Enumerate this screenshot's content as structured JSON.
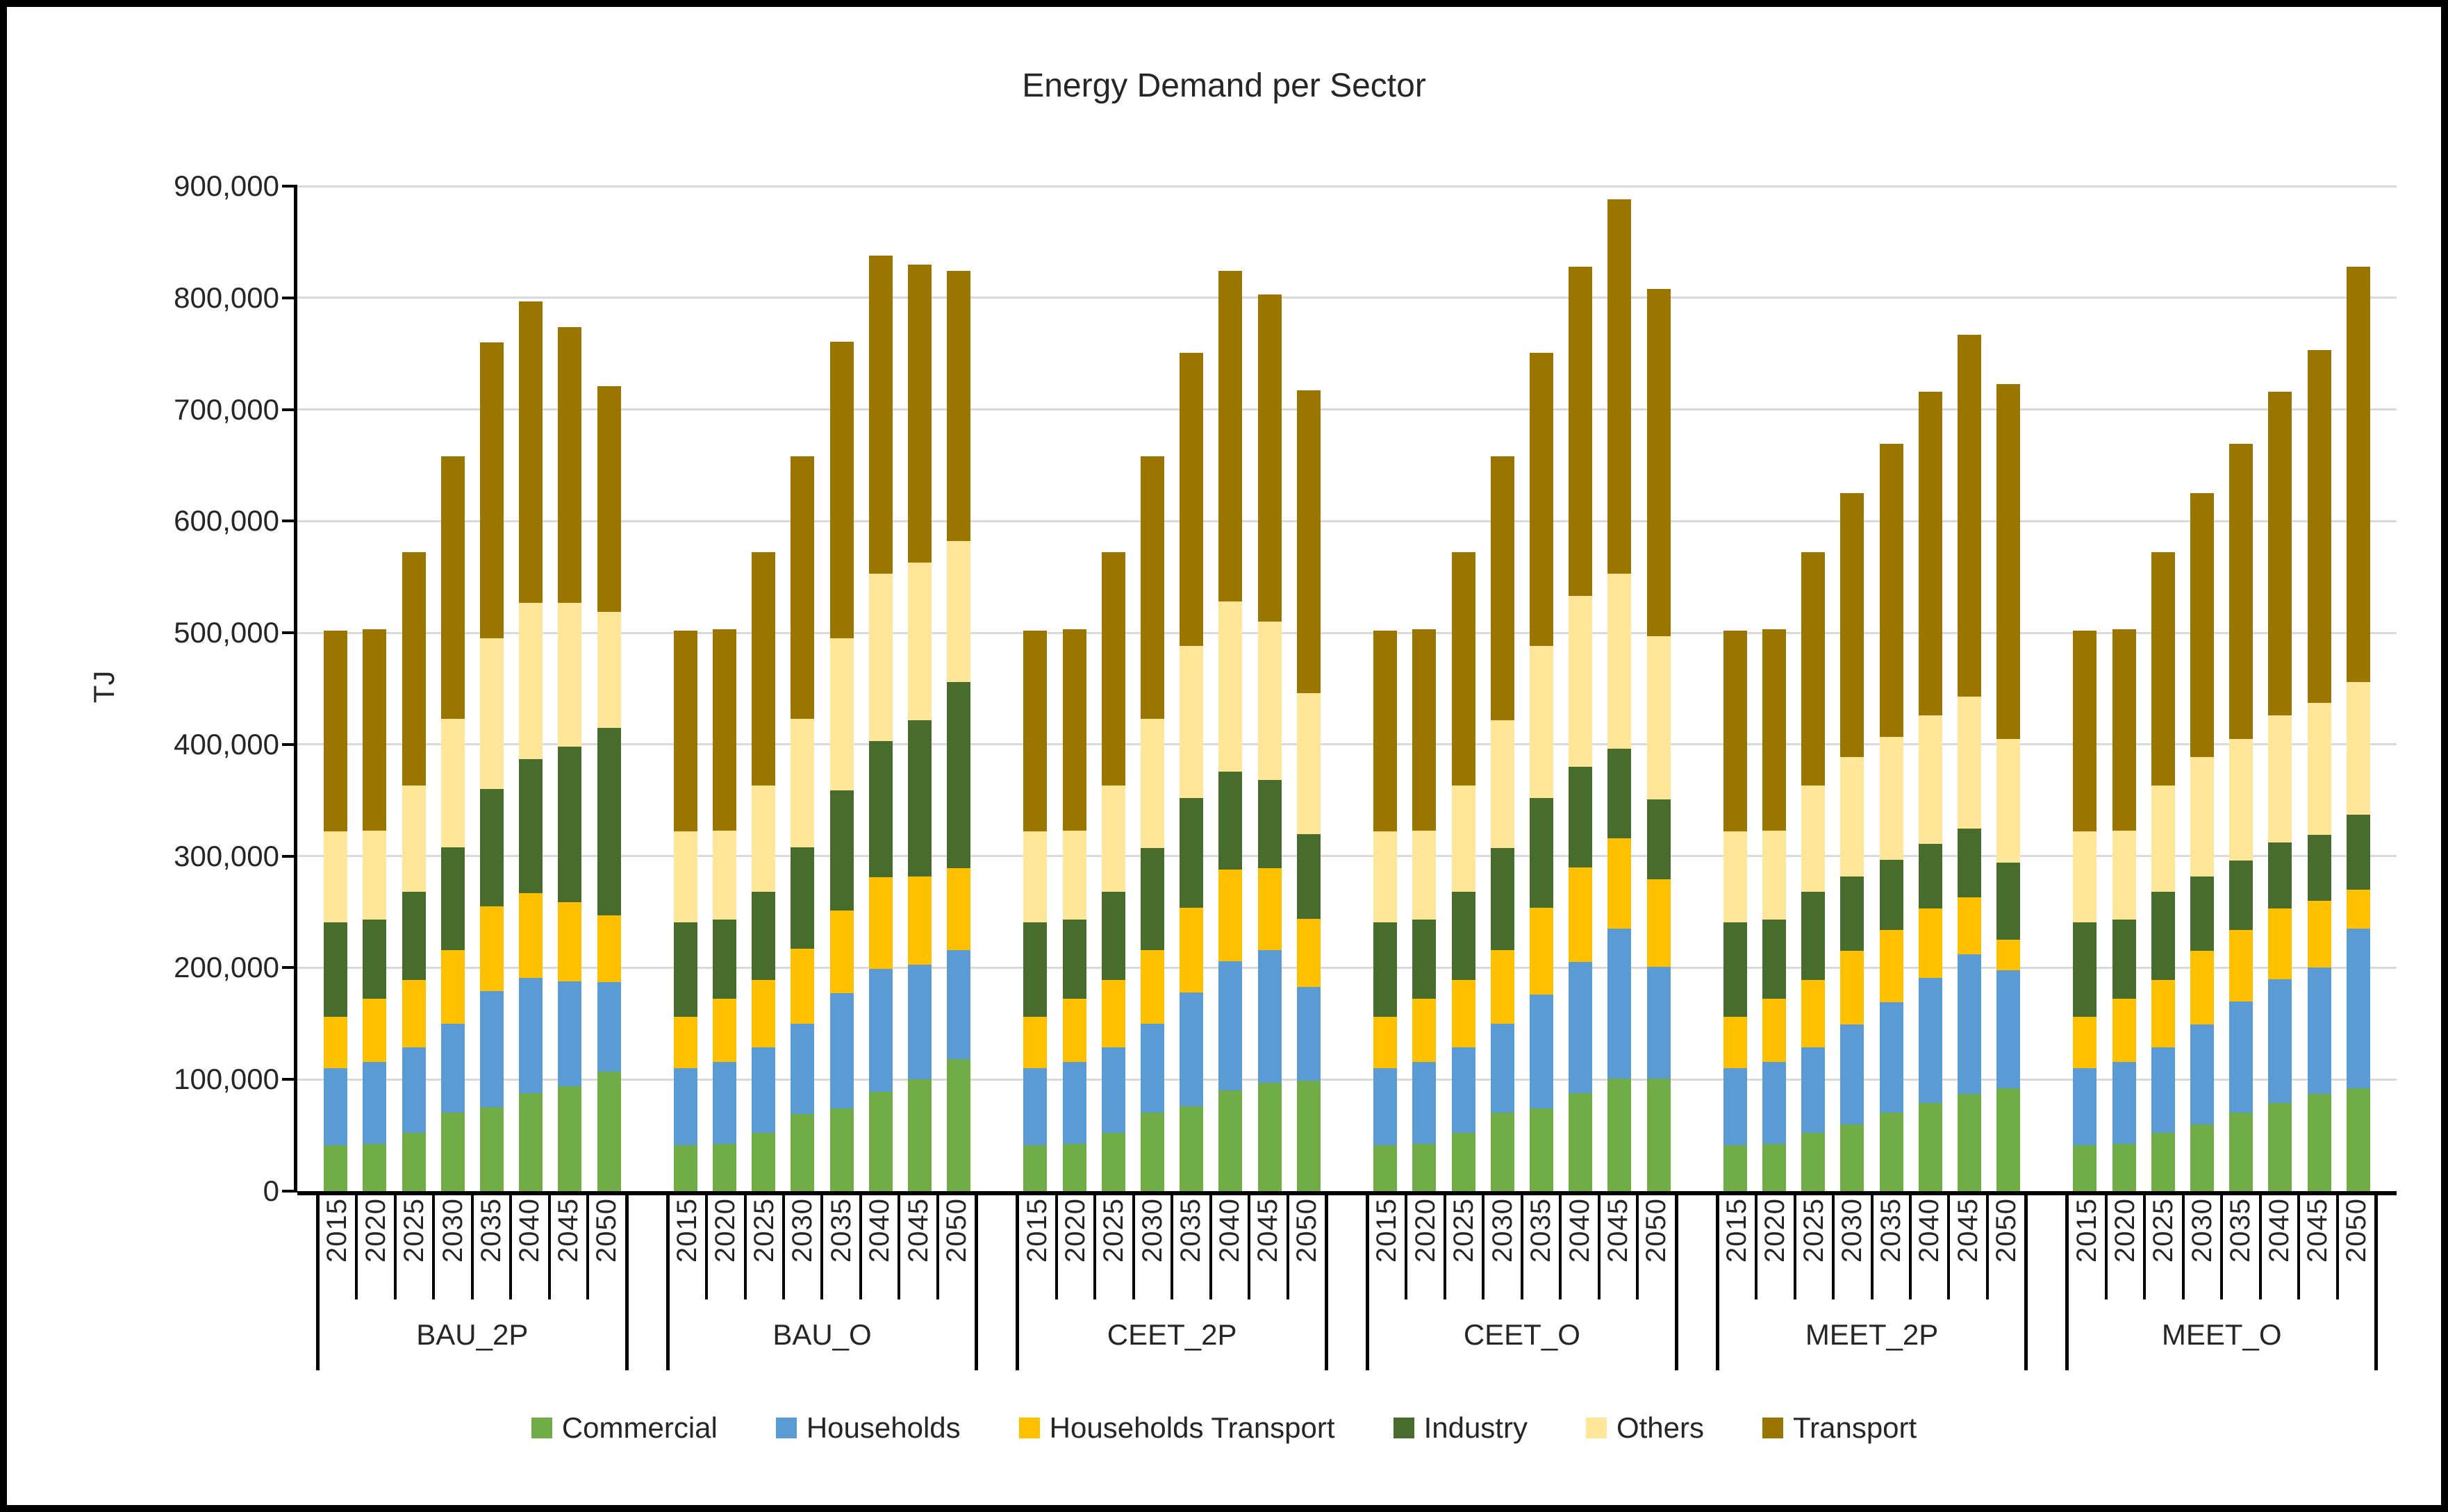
{
  "chart_data": {
    "type": "bar",
    "stacked": true,
    "title": "Energy Demand per Sector",
    "ylabel": "TJ",
    "ylim": [
      0,
      900000
    ],
    "grid": true,
    "legend_position": "bottom",
    "y_tick_labels": [
      "0",
      "100,000",
      "200,000",
      "300,000",
      "400,000",
      "500,000",
      "600,000",
      "700,000",
      "800,000",
      "900,000"
    ],
    "groups": [
      "BAU_2P",
      "BAU_O",
      "CEET_2P",
      "CEET_O",
      "MEET_2P",
      "MEET_O"
    ],
    "years": [
      "2015",
      "2020",
      "2025",
      "2030",
      "2035",
      "2040",
      "2045",
      "2050"
    ],
    "series": [
      {
        "name": "Commercial",
        "color": "#70AD47",
        "values": [
          [
            41000,
            42000,
            52000,
            70000,
            75000,
            88000,
            94000,
            107000
          ],
          [
            41000,
            42000,
            52000,
            69000,
            74000,
            89000,
            100000,
            118000
          ],
          [
            41000,
            42000,
            52000,
            70000,
            76000,
            90000,
            97000,
            99000
          ],
          [
            41000,
            42000,
            52000,
            70000,
            74000,
            88000,
            101000,
            101000
          ],
          [
            41000,
            42000,
            52000,
            60000,
            70000,
            79000,
            87000,
            92000
          ],
          [
            41000,
            42000,
            52000,
            60000,
            70000,
            79000,
            87000,
            92000
          ]
        ]
      },
      {
        "name": "Households",
        "color": "#5B9BD5",
        "values": [
          [
            69000,
            74000,
            77000,
            80000,
            104000,
            103000,
            94000,
            80000
          ],
          [
            69000,
            74000,
            77000,
            81000,
            103000,
            110000,
            103000,
            98000
          ],
          [
            69000,
            74000,
            77000,
            80000,
            102000,
            116000,
            119000,
            84000
          ],
          [
            69000,
            74000,
            77000,
            80000,
            102000,
            117000,
            134000,
            100000
          ],
          [
            69000,
            74000,
            77000,
            89000,
            99000,
            112000,
            125000,
            106000
          ],
          [
            69000,
            74000,
            77000,
            89000,
            100000,
            111000,
            113000,
            143000
          ]
        ]
      },
      {
        "name": "Households Transport",
        "color": "#FFC000",
        "values": [
          [
            46000,
            56000,
            60000,
            66000,
            76000,
            76000,
            71000,
            60000
          ],
          [
            46000,
            56000,
            60000,
            67000,
            74000,
            82000,
            79000,
            73000
          ],
          [
            46000,
            56000,
            60000,
            66000,
            76000,
            82000,
            73000,
            61000
          ],
          [
            46000,
            56000,
            60000,
            66000,
            78000,
            85000,
            81000,
            78000
          ],
          [
            46000,
            56000,
            60000,
            66000,
            65000,
            62000,
            51000,
            27000
          ],
          [
            46000,
            56000,
            60000,
            66000,
            64000,
            63000,
            60000,
            35000
          ]
        ]
      },
      {
        "name": "Industry",
        "color": "#486C2C",
        "values": [
          [
            85000,
            71000,
            79000,
            92000,
            105000,
            120000,
            139000,
            168000
          ],
          [
            85000,
            71000,
            79000,
            91000,
            108000,
            122000,
            140000,
            167000
          ],
          [
            85000,
            71000,
            79000,
            91000,
            98000,
            88000,
            79000,
            76000
          ],
          [
            85000,
            71000,
            79000,
            91000,
            98000,
            90000,
            80000,
            72000
          ],
          [
            85000,
            71000,
            79000,
            67000,
            63000,
            58000,
            62000,
            69000
          ],
          [
            85000,
            71000,
            79000,
            67000,
            62000,
            59000,
            59000,
            67000
          ]
        ]
      },
      {
        "name": "Others",
        "color": "#FFE699",
        "values": [
          [
            81000,
            80000,
            95000,
            115000,
            135000,
            140000,
            129000,
            104000
          ],
          [
            81000,
            80000,
            95000,
            115000,
            136000,
            150000,
            141000,
            126000
          ],
          [
            81000,
            80000,
            95000,
            116000,
            136000,
            152000,
            142000,
            126000
          ],
          [
            81000,
            80000,
            95000,
            115000,
            136000,
            153000,
            157000,
            146000
          ],
          [
            81000,
            80000,
            95000,
            107000,
            110000,
            115000,
            118000,
            111000
          ],
          [
            81000,
            80000,
            95000,
            107000,
            109000,
            114000,
            118000,
            119000
          ]
        ]
      },
      {
        "name": "Transport",
        "color": "#9A7600",
        "values": [
          [
            180000,
            180000,
            209000,
            235000,
            265000,
            270000,
            247000,
            202000
          ],
          [
            180000,
            180000,
            209000,
            235000,
            266000,
            285000,
            267000,
            242000
          ],
          [
            180000,
            180000,
            209000,
            235000,
            263000,
            296000,
            293000,
            271000
          ],
          [
            180000,
            180000,
            209000,
            236000,
            263000,
            295000,
            335000,
            311000
          ],
          [
            180000,
            180000,
            209000,
            236000,
            262000,
            290000,
            324000,
            318000
          ],
          [
            180000,
            180000,
            209000,
            236000,
            264000,
            290000,
            316000,
            372000
          ]
        ]
      }
    ],
    "gridline_color": "#D9D9D9"
  }
}
